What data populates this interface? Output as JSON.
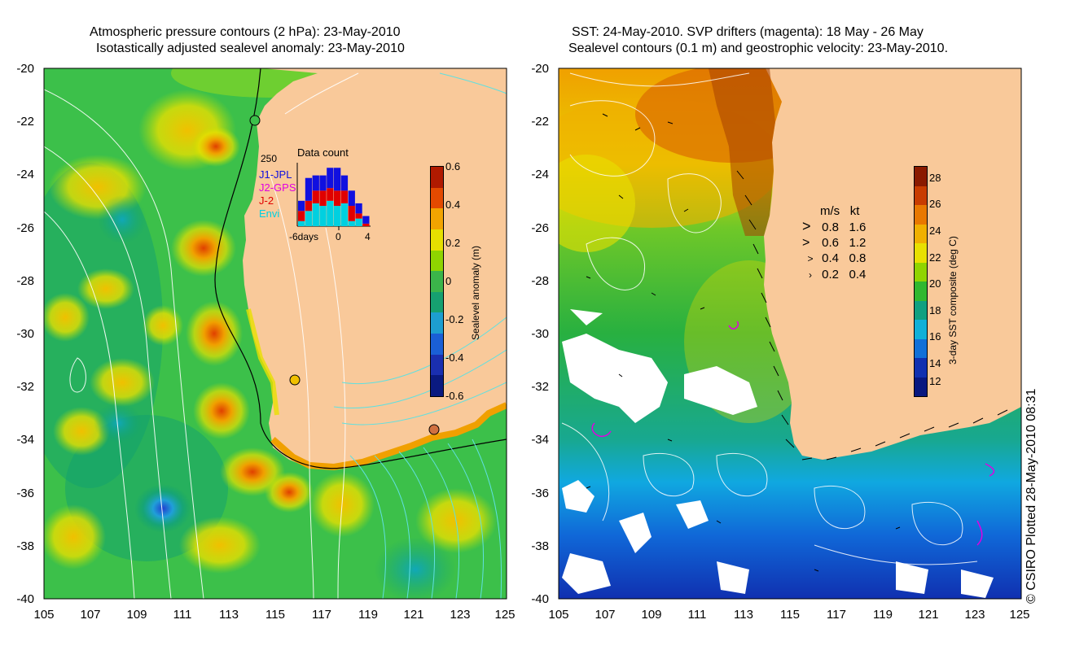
{
  "left_panel": {
    "title_line1": "Atmospheric pressure contours (2 hPa): 23-May-2010",
    "title_line2": "Isotastically adjusted sealevel anomaly: 23-May-2010",
    "colorbar": {
      "label": "Sealevel anomaly (m)",
      "ticks": [
        "0.6",
        "0.4",
        "0.2",
        "0",
        "-0.2",
        "-0.4",
        "-0.6"
      ],
      "colors": [
        "#b01a00",
        "#e34a00",
        "#f2a400",
        "#e6e000",
        "#8fd400",
        "#3bb54a",
        "#16a070",
        "#1d9ed0",
        "#1a5fd6",
        "#1a2fb0",
        "#0a1a80"
      ]
    },
    "data_count": {
      "title": "Data count",
      "ymax_label": "250",
      "legend": [
        {
          "name": "J1-JPL",
          "color": "#1010e0"
        },
        {
          "name": "J2-GPS",
          "color": "#e000e0"
        },
        {
          "name": "J-2",
          "color": "#e00000"
        },
        {
          "name": "Envi",
          "color": "#00d0e0"
        }
      ],
      "x_labels": [
        "-6days",
        "0",
        "4"
      ],
      "bars": [
        {
          "cyan": 20,
          "red": 40,
          "blue": 40
        },
        {
          "cyan": 60,
          "red": 40,
          "blue": 90
        },
        {
          "cyan": 90,
          "red": 50,
          "blue": 60
        },
        {
          "cyan": 80,
          "red": 60,
          "blue": 60
        },
        {
          "cyan": 100,
          "red": 50,
          "blue": 80
        },
        {
          "cyan": 80,
          "red": 60,
          "blue": 90
        },
        {
          "cyan": 90,
          "red": 50,
          "blue": 60
        },
        {
          "cyan": 20,
          "red": 60,
          "blue": 60
        },
        {
          "cyan": 30,
          "red": 20,
          "blue": 40
        },
        {
          "cyan": 0,
          "red": 10,
          "blue": 30
        }
      ]
    }
  },
  "right_panel": {
    "title_line1": "SST: 24-May-2010. SVP drifters (magenta): 18 May - 26 May",
    "title_line2": "Sealevel contours (0.1 m) and geostrophic velocity: 23-May-2010.",
    "colorbar": {
      "label": "3-day SST composite (deg C)",
      "ticks": [
        "28",
        "26",
        "24",
        "22",
        "20",
        "18",
        "16",
        "14",
        "12"
      ],
      "colors": [
        "#8a1a00",
        "#c83c00",
        "#e87800",
        "#f0b000",
        "#e8e000",
        "#90d400",
        "#30b830",
        "#10a080",
        "#10b0d8",
        "#1070d8",
        "#1030b0",
        "#081880"
      ]
    },
    "velocity_legend": {
      "header_ms": "m/s",
      "header_kt": "kt",
      "rows": [
        {
          "ms": "0.8",
          "kt": "1.6",
          "arrow": ">"
        },
        {
          "ms": "0.6",
          "kt": "1.2",
          "arrow": ">"
        },
        {
          "ms": "0.4",
          "kt": "0.8",
          "arrow": ">"
        },
        {
          "ms": "0.2",
          "kt": "0.4",
          "arrow": "›"
        }
      ]
    }
  },
  "axes": {
    "x_ticks": [
      "105",
      "107",
      "109",
      "111",
      "113",
      "115",
      "117",
      "119",
      "121",
      "123",
      "125"
    ],
    "y_ticks": [
      "-20",
      "-22",
      "-24",
      "-26",
      "-28",
      "-30",
      "-32",
      "-34",
      "-36",
      "-38",
      "-40"
    ]
  },
  "credit": "© CSIRO Plotted 28-May-2010 08:31",
  "colors": {
    "land": "#f9c99a",
    "ocean_left": "#3cc04a",
    "ocean_right": "#30a848"
  }
}
